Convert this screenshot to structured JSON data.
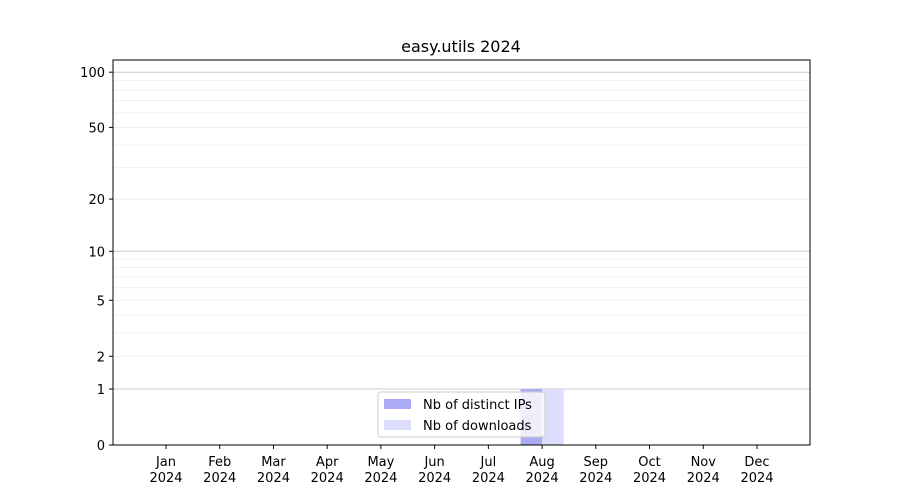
{
  "chart_data": {
    "type": "bar",
    "title": "easy.utils 2024",
    "xlabel": "",
    "ylabel": "",
    "y_scale": "log10(1+y)",
    "categories": [
      "Jan\n2024",
      "Feb\n2024",
      "Mar\n2024",
      "Apr\n2024",
      "May\n2024",
      "Jun\n2024",
      "Jul\n2024",
      "Aug\n2024",
      "Sep\n2024",
      "Oct\n2024",
      "Nov\n2024",
      "Dec\n2024"
    ],
    "yticks": [
      0,
      1,
      2,
      5,
      10,
      20,
      50,
      100
    ],
    "ylim": [
      0,
      116
    ],
    "grid": true,
    "legend_placement": "lower center",
    "series": [
      {
        "name": "Nb of distinct IPs",
        "color": "#aaaaf5",
        "values": [
          0,
          0,
          0,
          0,
          0,
          0,
          0,
          1,
          0,
          0,
          0,
          0
        ]
      },
      {
        "name": "Nb of downloads",
        "color": "#dcdcfc",
        "values": [
          0,
          0,
          0,
          0,
          0,
          0,
          0,
          1,
          0,
          0,
          0,
          0
        ]
      }
    ]
  }
}
